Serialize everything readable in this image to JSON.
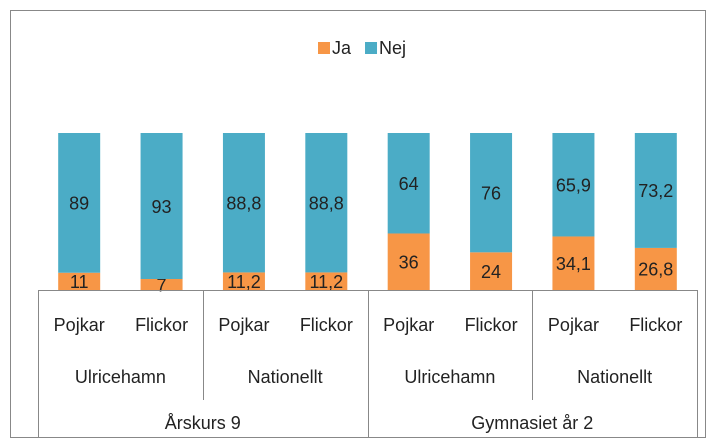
{
  "chart_data": {
    "type": "stacked_bar",
    "categories": [
      "Pojkar",
      "Flickor",
      "Pojkar",
      "Flickor",
      "Pojkar",
      "Flickor",
      "Pojkar",
      "Flickor"
    ],
    "groups": [
      "Ulricehamn",
      "Nationellt",
      "Ulricehamn",
      "Nationellt"
    ],
    "supergroups": [
      "Årskurs 9",
      "Gymnasiet år 2"
    ],
    "series": [
      {
        "name": "Ja",
        "color": "#f79646",
        "values": [
          11,
          7,
          11.2,
          11.2,
          36,
          24,
          34.1,
          26.8
        ],
        "value_labels": [
          "11",
          "7",
          "11,2",
          "11,2",
          "36",
          "24",
          "34,1",
          "26,8"
        ]
      },
      {
        "name": "Nej",
        "color": "#4bacc6",
        "values": [
          89,
          93,
          88.8,
          88.8,
          64,
          76,
          65.9,
          73.2
        ],
        "value_labels": [
          "89",
          "93",
          "88,8",
          "88,8",
          "64",
          "76",
          "65,9",
          "73,2"
        ]
      }
    ],
    "legend": "top"
  }
}
